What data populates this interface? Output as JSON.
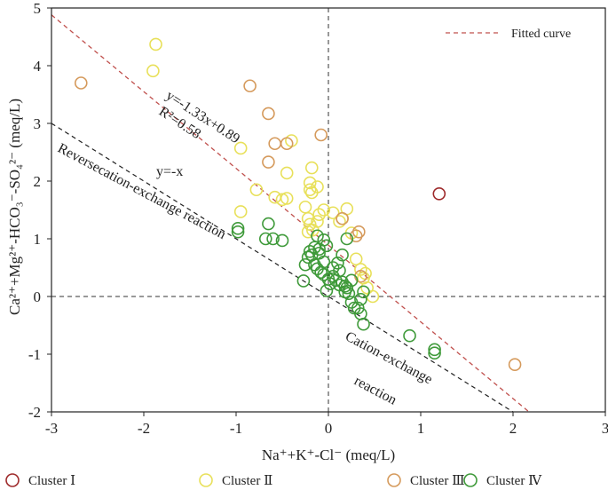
{
  "chart_data": {
    "type": "scatter",
    "xlabel": "Na⁺+K⁺-Cl⁻ (meq/L)",
    "ylabel": "Ca²⁺+Mg²⁺-HCO₃⁻-SO₄²⁻ (meq/L)",
    "xlim": [
      -3,
      3
    ],
    "ylim": [
      -2,
      5
    ],
    "xticks": [
      "-3",
      "-2",
      "-1",
      "0",
      "1",
      "2",
      "3"
    ],
    "yticks": [
      "-2",
      "-1",
      "0",
      "1",
      "2",
      "3",
      "4",
      "5"
    ],
    "reference_lines": {
      "x_zero": 0,
      "y_zero": 0
    },
    "fitted_curve": {
      "slope": -1.33,
      "intercept": 0.89,
      "color": "#c0504d",
      "label": "Fitted curve"
    },
    "ref_line": {
      "slope": -1,
      "intercept": 0,
      "color": "#222222"
    },
    "legend_top": {
      "label": "Fitted curve",
      "position": "top-right"
    },
    "annotations": {
      "equation": "y=-1.33x+0.89",
      "r2": "R²=0.58",
      "yx": "y=-x",
      "reverse": "Reversecation-exchange reaction",
      "cation1": "Cation-exchange",
      "cation2": "reaction"
    },
    "series": [
      {
        "name": "Cluster Ⅰ",
        "color": "#9e2a2b",
        "points": [
          [
            1.2,
            1.78
          ]
        ]
      },
      {
        "name": "Cluster Ⅱ",
        "color": "#e8e05a",
        "points": [
          [
            -1.87,
            4.37
          ],
          [
            -1.9,
            3.91
          ],
          [
            -0.95,
            2.57
          ],
          [
            -0.4,
            2.7
          ],
          [
            -0.78,
            1.85
          ],
          [
            -0.58,
            1.72
          ],
          [
            -0.45,
            1.7
          ],
          [
            -0.5,
            1.68
          ],
          [
            -0.95,
            1.47
          ],
          [
            -0.18,
            2.23
          ],
          [
            -0.2,
            1.97
          ],
          [
            -0.2,
            1.85
          ],
          [
            -0.18,
            1.8
          ],
          [
            -0.12,
            1.9
          ],
          [
            -0.45,
            2.14
          ],
          [
            -0.25,
            1.55
          ],
          [
            -0.22,
            1.35
          ],
          [
            -0.2,
            1.25
          ],
          [
            -0.17,
            1.15
          ],
          [
            -0.05,
            1.5
          ],
          [
            -0.1,
            1.42
          ],
          [
            0.05,
            1.45
          ],
          [
            0.2,
            1.52
          ],
          [
            0.12,
            1.3
          ],
          [
            0.25,
            1.1
          ],
          [
            0.3,
            0.65
          ],
          [
            0.35,
            0.47
          ],
          [
            0.4,
            0.4
          ],
          [
            0.38,
            0.32
          ],
          [
            0.42,
            0.15
          ],
          [
            0.48,
            0.0
          ],
          [
            -0.22,
            1.12
          ],
          [
            -0.12,
            1.3
          ],
          [
            0.15,
            1.35
          ]
        ]
      },
      {
        "name": "Cluster Ⅲ",
        "color": "#d59a5c",
        "points": [
          [
            -2.68,
            3.7
          ],
          [
            -0.85,
            3.65
          ],
          [
            -0.65,
            3.17
          ],
          [
            -0.58,
            2.65
          ],
          [
            -0.45,
            2.65
          ],
          [
            -0.65,
            2.33
          ],
          [
            -0.08,
            2.8
          ],
          [
            0.15,
            1.35
          ],
          [
            0.33,
            1.12
          ],
          [
            0.3,
            1.05
          ],
          [
            0.35,
            0.35
          ],
          [
            2.02,
            -1.18
          ]
        ]
      },
      {
        "name": "Cluster Ⅳ",
        "color": "#3f9a3a",
        "points": [
          [
            -0.98,
            1.18
          ],
          [
            -0.98,
            1.12
          ],
          [
            -0.65,
            1.26
          ],
          [
            -0.68,
            1.0
          ],
          [
            -0.6,
            1.0
          ],
          [
            -0.5,
            0.97
          ],
          [
            -0.12,
            1.05
          ],
          [
            -0.05,
            0.98
          ],
          [
            -0.02,
            0.88
          ],
          [
            -0.15,
            0.85
          ],
          [
            -0.2,
            0.78
          ],
          [
            -0.1,
            0.75
          ],
          [
            -0.22,
            0.68
          ],
          [
            -0.18,
            0.72
          ],
          [
            -0.25,
            0.55
          ],
          [
            -0.15,
            0.55
          ],
          [
            -0.12,
            0.48
          ],
          [
            -0.08,
            0.42
          ],
          [
            -0.05,
            0.38
          ],
          [
            0.0,
            0.3
          ],
          [
            -0.27,
            0.27
          ],
          [
            -0.02,
            0.1
          ],
          [
            0.02,
            0.22
          ],
          [
            0.05,
            0.5
          ],
          [
            0.1,
            0.58
          ],
          [
            0.12,
            0.45
          ],
          [
            0.15,
            0.72
          ],
          [
            0.2,
            1.0
          ],
          [
            0.08,
            0.28
          ],
          [
            0.12,
            0.2
          ],
          [
            0.15,
            0.25
          ],
          [
            0.18,
            0.08
          ],
          [
            0.18,
            0.18
          ],
          [
            0.2,
            0.15
          ],
          [
            0.22,
            0.05
          ],
          [
            0.25,
            -0.1
          ],
          [
            0.28,
            -0.2
          ],
          [
            0.35,
            -0.05
          ],
          [
            0.38,
            0.08
          ],
          [
            0.35,
            -0.3
          ],
          [
            0.38,
            -0.48
          ],
          [
            0.32,
            -0.2
          ],
          [
            0.88,
            -0.68
          ],
          [
            1.15,
            -0.92
          ],
          [
            1.15,
            -0.98
          ],
          [
            -0.1,
            0.82
          ],
          [
            -0.05,
            0.6
          ],
          [
            0.05,
            0.35
          ],
          [
            0.25,
            0.28
          ]
        ]
      }
    ]
  }
}
